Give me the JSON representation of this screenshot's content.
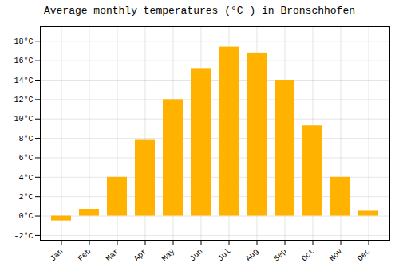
{
  "chart_data": {
    "type": "bar",
    "title": "Average monthly temperatures (°C ) in Bronschhofen",
    "categories": [
      "Jan",
      "Feb",
      "Mar",
      "Apr",
      "May",
      "Jun",
      "Jul",
      "Aug",
      "Sep",
      "Oct",
      "Nov",
      "Dec"
    ],
    "values": [
      -0.5,
      0.7,
      4.0,
      7.8,
      12.0,
      15.2,
      17.4,
      16.8,
      14.0,
      9.3,
      4.0,
      0.5
    ],
    "color": "#FFB300",
    "ylim": [
      -2.5,
      19.5
    ],
    "yticks": [
      {
        "value": -2,
        "label": "-2°C"
      },
      {
        "value": 0,
        "label": "0°C"
      },
      {
        "value": 2,
        "label": "2°C"
      },
      {
        "value": 4,
        "label": "4°C"
      },
      {
        "value": 6,
        "label": "6°C"
      },
      {
        "value": 8,
        "label": "8°C"
      },
      {
        "value": 10,
        "label": "10°C"
      },
      {
        "value": 12,
        "label": "12°C"
      },
      {
        "value": 14,
        "label": "14°C"
      },
      {
        "value": 16,
        "label": "16°C"
      },
      {
        "value": 18,
        "label": "18°C"
      }
    ],
    "grid": true
  }
}
